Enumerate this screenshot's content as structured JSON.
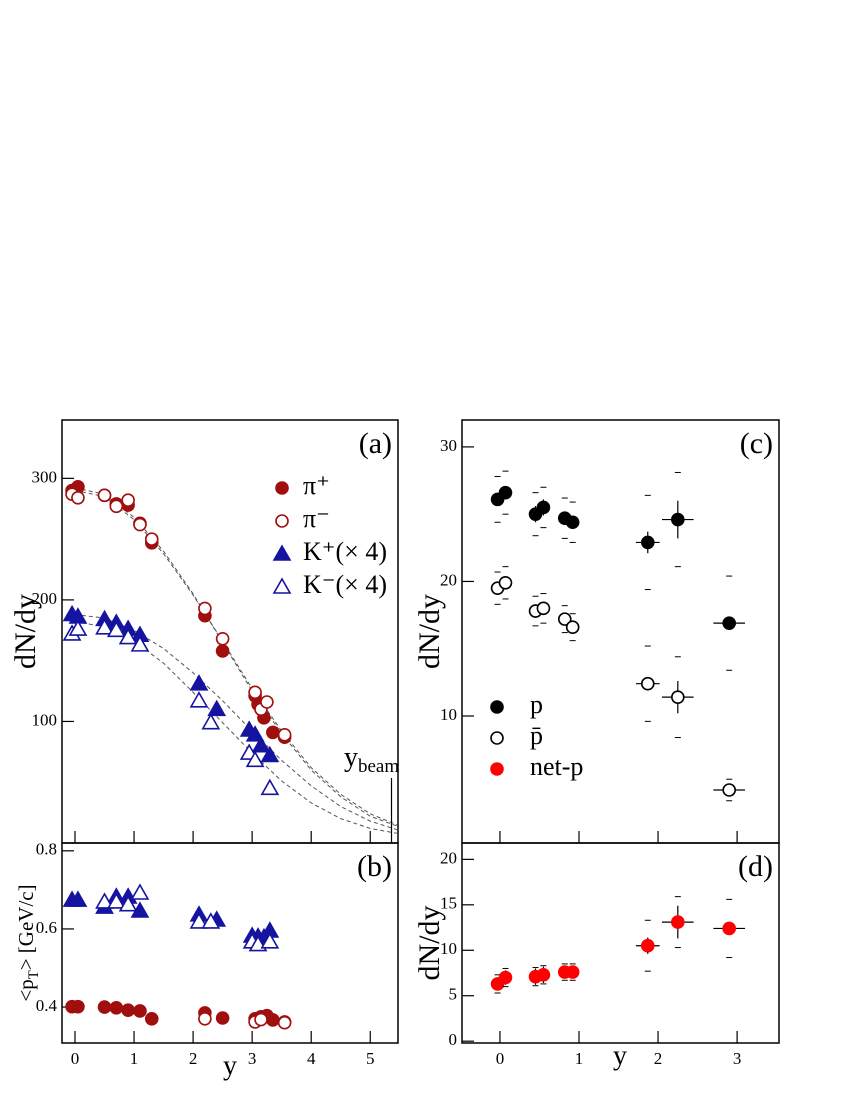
{
  "chart_data": [
    {
      "type": "scatter",
      "label": "(a)",
      "ylabel": "dN/dy",
      "xlim": [
        -0.22,
        5.47
      ],
      "ylim": [
        0,
        348
      ],
      "xticks": [
        0,
        1,
        2,
        3,
        4,
        5
      ],
      "yticks": [
        100,
        200,
        300
      ],
      "legend": "upper right",
      "series": [
        {
          "name": "π⁺",
          "color": "#a00e0e",
          "marker": "circle",
          "filled": true,
          "x": [
            -0.05,
            0.05,
            0.5,
            0.7,
            0.9,
            1.1,
            1.3,
            2.2,
            2.5,
            3.05,
            3.1,
            3.2,
            3.35,
            3.55
          ],
          "values": [
            290,
            293,
            286,
            279,
            278,
            263,
            247,
            187,
            158,
            121,
            114,
            103,
            91,
            87
          ]
        },
        {
          "name": "π⁻",
          "color": "#a00e0e",
          "marker": "circle",
          "filled": false,
          "x": [
            -0.05,
            0.05,
            0.5,
            0.7,
            0.9,
            1.1,
            1.3,
            2.2,
            2.5,
            3.05,
            3.15,
            3.25,
            3.55
          ],
          "values": [
            287,
            284,
            286,
            277,
            282,
            262,
            250,
            193,
            168,
            124,
            110,
            116,
            89
          ]
        },
        {
          "name": "K⁺(× 4)",
          "color": "#1414a0",
          "marker": "triangle",
          "filled": true,
          "x": [
            -0.05,
            0.05,
            0.5,
            0.7,
            0.9,
            1.1,
            2.1,
            2.4,
            2.95,
            3.05,
            3.15,
            3.3
          ],
          "values": [
            188,
            186,
            184,
            181,
            176,
            171,
            131,
            110,
            93,
            89,
            80,
            72
          ]
        },
        {
          "name": "K⁻(× 4)",
          "color": "#1414a0",
          "marker": "triangle",
          "filled": false,
          "x": [
            -0.05,
            0.05,
            0.5,
            0.7,
            0.9,
            1.1,
            2.1,
            2.3,
            2.95,
            3.05,
            3.3
          ],
          "values": [
            172,
            176,
            177,
            175,
            169,
            163,
            117,
            99,
            74,
            68,
            45
          ]
        }
      ],
      "fit_x": [
        0,
        0.5,
        1,
        1.5,
        2,
        2.5,
        3,
        3.5,
        4,
        4.5,
        5,
        5.45
      ],
      "fit_color": "#555555",
      "fits": [
        {
          "values": [
            292,
            287,
            268,
            240,
            205,
            165,
            125,
            90,
            60,
            38,
            22,
            14
          ]
        },
        {
          "values": [
            290,
            285,
            266,
            238,
            204,
            166,
            127,
            92,
            62,
            40,
            24,
            15
          ]
        },
        {
          "values": [
            188,
            185,
            175,
            160,
            140,
            117,
            92,
            68,
            47,
            30,
            18,
            11
          ]
        },
        {
          "values": [
            182,
            178,
            166,
            148,
            124,
            99,
            74,
            51,
            33,
            20,
            12,
            8
          ]
        }
      ],
      "beam": {
        "label": "y",
        "sub": "beam",
        "x": 5.36
      }
    },
    {
      "type": "scatter",
      "label": "(b)",
      "ylabel": [
        "<p",
        "T",
        "> [GeV/c]"
      ],
      "xlabel": "y",
      "xlim": [
        -0.22,
        5.47
      ],
      "ylim": [
        0.308,
        0.82
      ],
      "xticks": [
        0,
        1,
        2,
        3,
        4,
        5
      ],
      "yticks": [
        0.4,
        0.6,
        0.8
      ],
      "series": [
        {
          "color": "#a00e0e",
          "marker": "circle",
          "filled": true,
          "x": [
            -0.05,
            0.05,
            0.5,
            0.7,
            0.9,
            1.1,
            1.3,
            2.2,
            2.5,
            3.05,
            3.15,
            3.25,
            3.35,
            3.55
          ],
          "values": [
            0.401,
            0.401,
            0.4,
            0.398,
            0.392,
            0.39,
            0.37,
            0.385,
            0.372,
            0.37,
            0.375,
            0.378,
            0.367,
            0.362
          ]
        },
        {
          "color": "#a00e0e",
          "marker": "circle",
          "filled": false,
          "x": [
            2.2,
            3.05,
            3.15,
            3.55
          ],
          "values": [
            0.37,
            0.362,
            0.368,
            0.36
          ]
        },
        {
          "color": "#1414a0",
          "marker": "triangle",
          "filled": true,
          "x": [
            -0.05,
            0.05,
            0.5,
            0.7,
            0.9,
            1.1,
            2.1,
            2.4,
            3.0,
            3.1,
            3.2,
            3.3
          ],
          "values": [
            0.674,
            0.674,
            0.656,
            0.682,
            0.682,
            0.646,
            0.636,
            0.623,
            0.582,
            0.58,
            0.578,
            0.595
          ]
        },
        {
          "color": "#1414a0",
          "marker": "triangle",
          "filled": false,
          "x": [
            0.5,
            0.7,
            0.9,
            1.1,
            2.1,
            2.3,
            3.0,
            3.1,
            3.3
          ],
          "values": [
            0.669,
            0.669,
            0.662,
            0.692,
            0.618,
            0.618,
            0.567,
            0.56,
            0.567
          ]
        }
      ]
    },
    {
      "type": "scatter",
      "label": "(c)",
      "ylabel": "dN/dy",
      "xlim": [
        -0.48,
        3.53
      ],
      "ylim": [
        0.56,
        32
      ],
      "xticks": [
        0,
        1,
        2,
        3
      ],
      "yticks": [
        10,
        20,
        30
      ],
      "legend": "lower left",
      "series": [
        {
          "name": "p",
          "color": "#000000",
          "marker": "circle",
          "filled": true,
          "x": [
            -0.03,
            0.07,
            0.45,
            0.55,
            0.82,
            0.92,
            1.87,
            2.25,
            2.9
          ],
          "values": [
            26.1,
            26.6,
            25.0,
            25.5,
            24.7,
            24.4,
            22.9,
            24.6,
            16.9
          ],
          "errors": [
            0.4,
            0.5,
            0.6,
            0.6,
            0.4,
            0.4,
            0.8,
            1.4,
            0.3
          ],
          "xerr": [
            null,
            null,
            null,
            null,
            null,
            null,
            0.15,
            0.2,
            0.2
          ],
          "sys": [
            1.7,
            1.6,
            1.6,
            1.5,
            1.5,
            1.5,
            3.5,
            3.5,
            3.5
          ]
        },
        {
          "name": "p̄",
          "color": "#000000",
          "marker": "circle",
          "filled": false,
          "x": [
            -0.03,
            0.07,
            0.45,
            0.55,
            0.82,
            0.92,
            1.87,
            2.25,
            2.9
          ],
          "values": [
            19.5,
            19.9,
            17.8,
            18.0,
            17.2,
            16.6,
            12.4,
            11.4,
            4.5
          ],
          "errors": [
            0.4,
            0.4,
            0.5,
            0.5,
            0.4,
            0.4,
            0.5,
            1.2,
            0.3
          ],
          "xerr": [
            null,
            null,
            null,
            null,
            null,
            null,
            0.15,
            0.2,
            0.2
          ],
          "sys": [
            1.2,
            1.2,
            1.1,
            1.1,
            1.0,
            1.0,
            2.8,
            3.0,
            0.8
          ]
        }
      ]
    },
    {
      "type": "scatter",
      "label": "(d)",
      "ylabel": "dN/dy",
      "xlabel": "y",
      "xlim": [
        -0.48,
        3.53
      ],
      "ylim": [
        -0.2,
        21.8
      ],
      "xticks": [
        0,
        1,
        2,
        3
      ],
      "yticks": [
        0,
        5,
        10,
        15,
        20
      ],
      "series": [
        {
          "name": "net-p",
          "color": "#ff0000",
          "marker": "circle",
          "filled": true,
          "x": [
            -0.03,
            0.07,
            0.45,
            0.55,
            0.82,
            0.92,
            1.87,
            2.25,
            2.9
          ],
          "values": [
            6.3,
            7.0,
            7.1,
            7.3,
            7.6,
            7.6,
            10.5,
            13.1,
            12.4
          ],
          "errors": [
            0.7,
            0.8,
            0.9,
            0.9,
            0.7,
            0.7,
            0.9,
            1.8,
            0.4
          ],
          "xerr": [
            null,
            null,
            null,
            null,
            null,
            null,
            0.15,
            0.2,
            0.2
          ],
          "sys": [
            1.0,
            1.0,
            1.0,
            1.0,
            0.9,
            0.9,
            2.8,
            2.8,
            3.2
          ]
        }
      ]
    }
  ]
}
